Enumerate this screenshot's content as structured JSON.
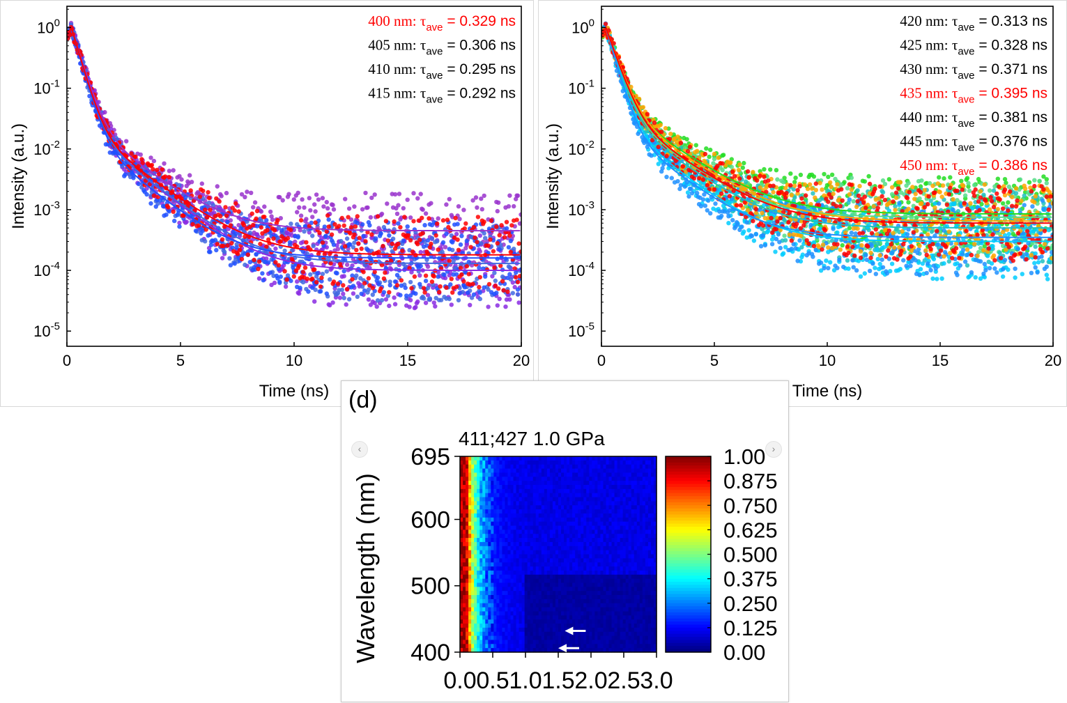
{
  "charts": [
    {
      "id": "left",
      "type": "scatter",
      "xlabel": "Time (ns)",
      "ylabel": "Intensity (a.u.)",
      "xlim": [
        0,
        20
      ],
      "ylim_log10": [
        -5.25,
        0.35
      ],
      "yscale": "log",
      "xticks": [
        "0",
        "5",
        "10",
        "15",
        "20"
      ],
      "yticks": [
        {
          "base": "10",
          "exp": "0"
        },
        {
          "base": "10",
          "exp": "-1"
        },
        {
          "base": "10",
          "exp": "-2"
        },
        {
          "base": "10",
          "exp": "-3"
        },
        {
          "base": "10",
          "exp": "-4"
        },
        {
          "base": "10",
          "exp": "-5"
        }
      ],
      "annotations": [
        {
          "wl": "400 nm:",
          "tau": "τ",
          "sub": "ave",
          "value": "= 0.329 ns",
          "color": "#ff0000"
        },
        {
          "wl": "405 nm:",
          "tau": "τ",
          "sub": "ave",
          "value": "= 0.306 ns",
          "color": "#000000"
        },
        {
          "wl": "410 nm:",
          "tau": "τ",
          "sub": "ave",
          "value": "= 0.295 ns",
          "color": "#000000"
        },
        {
          "wl": "415 nm:",
          "tau": "τ",
          "sub": "ave",
          "value": "= 0.292 ns",
          "color": "#000000"
        }
      ],
      "series": [
        {
          "color": "#9932cc",
          "tau": 0.35,
          "a2": 0.035,
          "t2": 1.55,
          "floor": 0.00045
        },
        {
          "color": "#8a2be2",
          "tau": 0.34,
          "a2": 0.03,
          "t2": 1.45,
          "floor": 0.0001
        },
        {
          "color": "#4169e1",
          "tau": 0.33,
          "a2": 0.028,
          "t2": 1.5,
          "floor": 0.00013
        },
        {
          "color": "#2050ff",
          "tau": 0.32,
          "a2": 0.025,
          "t2": 1.4,
          "floor": 0.00016
        },
        {
          "color": "#ff0000",
          "tau": 0.33,
          "a2": 0.03,
          "t2": 1.55,
          "floor": 0.00018
        }
      ]
    },
    {
      "id": "right",
      "type": "scatter",
      "xlabel": "Time (ns)",
      "ylabel": "Intensity (a.u.)",
      "xlim": [
        0,
        20
      ],
      "ylim_log10": [
        -5.25,
        0.35
      ],
      "yscale": "log",
      "xticks": [
        "0",
        "5",
        "10",
        "15",
        "20"
      ],
      "yticks": [
        {
          "base": "10",
          "exp": "0"
        },
        {
          "base": "10",
          "exp": "-1"
        },
        {
          "base": "10",
          "exp": "-2"
        },
        {
          "base": "10",
          "exp": "-3"
        },
        {
          "base": "10",
          "exp": "-4"
        },
        {
          "base": "10",
          "exp": "-5"
        }
      ],
      "annotations": [
        {
          "wl": "420 nm:",
          "tau": "τ",
          "sub": "ave",
          "value": "= 0.313 ns",
          "color": "#000000"
        },
        {
          "wl": "425 nm:",
          "tau": "τ",
          "sub": "ave",
          "value": "= 0.328 ns",
          "color": "#000000"
        },
        {
          "wl": "430 nm:",
          "tau": "τ",
          "sub": "ave",
          "value": "= 0.371 ns",
          "color": "#000000"
        },
        {
          "wl": "435 nm:",
          "tau": "τ",
          "sub": "ave",
          "value": "= 0.395 ns",
          "color": "#ff0000"
        },
        {
          "wl": "440 nm:",
          "tau": "τ",
          "sub": "ave",
          "value": "= 0.381 ns",
          "color": "#000000"
        },
        {
          "wl": "445 nm:",
          "tau": "τ",
          "sub": "ave",
          "value": "= 0.376 ns",
          "color": "#000000"
        },
        {
          "wl": "450 nm:",
          "tau": "τ",
          "sub": "ave",
          "value": "= 0.386 ns",
          "color": "#ff0000"
        }
      ],
      "series": [
        {
          "color": "#22dd22",
          "tau": 0.38,
          "a2": 0.06,
          "t2": 1.7,
          "floor": 0.00085
        },
        {
          "color": "#55dd88",
          "tau": 0.37,
          "a2": 0.05,
          "t2": 1.6,
          "floor": 0.00075
        },
        {
          "color": "#20c0c0",
          "tau": 0.36,
          "a2": 0.045,
          "t2": 1.6,
          "floor": 0.0005
        },
        {
          "color": "#00ccff",
          "tau": 0.34,
          "a2": 0.035,
          "t2": 1.5,
          "floor": 0.0003
        },
        {
          "color": "#1e90ff",
          "tau": 0.33,
          "a2": 0.03,
          "t2": 1.5,
          "floor": 0.00035
        },
        {
          "color": "#ffa500",
          "tau": 0.4,
          "a2": 0.055,
          "t2": 1.7,
          "floor": 0.00065
        },
        {
          "color": "#ff0000",
          "tau": 0.39,
          "a2": 0.05,
          "t2": 1.65,
          "floor": 0.0006
        }
      ]
    },
    {
      "id": "bottom",
      "type": "heatmap",
      "panel_label": "(d)",
      "title": "411;427  1.0 GPa",
      "ylabel": "Wavelength (nm)",
      "xlim": [
        0.0,
        3.0
      ],
      "ylim": [
        400,
        695
      ],
      "xticks": [
        "0.0",
        "0.5",
        "1.0",
        "1.5",
        "2.0",
        "2.5",
        "3.0"
      ],
      "yticks": [
        "695",
        "600",
        "500",
        "400"
      ],
      "colorbar_ticks": [
        "1.00",
        "0.875",
        "0.750",
        "0.625",
        "0.500",
        "0.375",
        "0.250",
        "0.125",
        "0.00"
      ],
      "colorbar_range": [
        0,
        1
      ],
      "arrows": [
        {
          "x": 1.6,
          "y": 432
        },
        {
          "x": 1.5,
          "y": 406
        }
      ]
    }
  ]
}
